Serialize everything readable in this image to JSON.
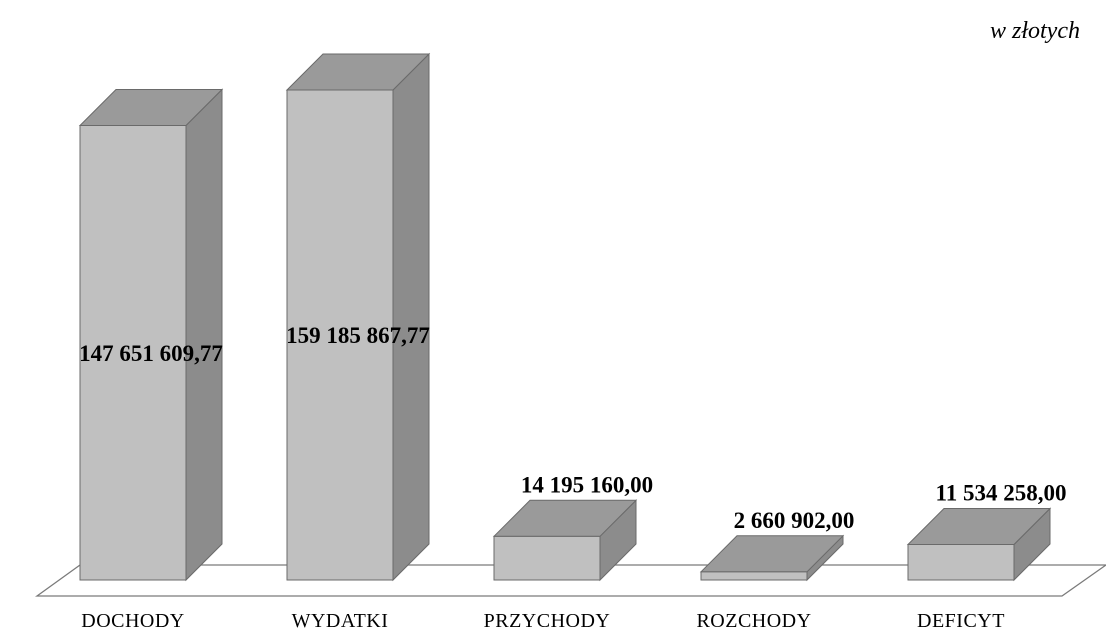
{
  "chart_data": {
    "type": "bar",
    "title": "",
    "unit_label": "w złotych",
    "xlabel": "",
    "ylabel": "",
    "categories": [
      "DOCHODY",
      "WYDATKI",
      "PRZYCHODY",
      "ROZCHODY",
      "DEFICYT"
    ],
    "values": [
      147651609.77,
      159185867.77,
      14195160.0,
      2660902.0,
      11534258.0
    ],
    "value_labels": [
      "147 651 609,77",
      "159 185 867,77",
      "14 195 160,00",
      "2 660 902,00",
      "11 534 258,00"
    ],
    "ylim": [
      0,
      170000000
    ],
    "grid": false,
    "legend": "none",
    "bar_3d": true,
    "colors": {
      "bar_front": "#c0c0c0",
      "bar_side": "#8c8c8c",
      "bar_top": "#9a9a9a",
      "bar_edge": "#6a6a6a",
      "floor_edge": "#7a7a7a"
    }
  }
}
